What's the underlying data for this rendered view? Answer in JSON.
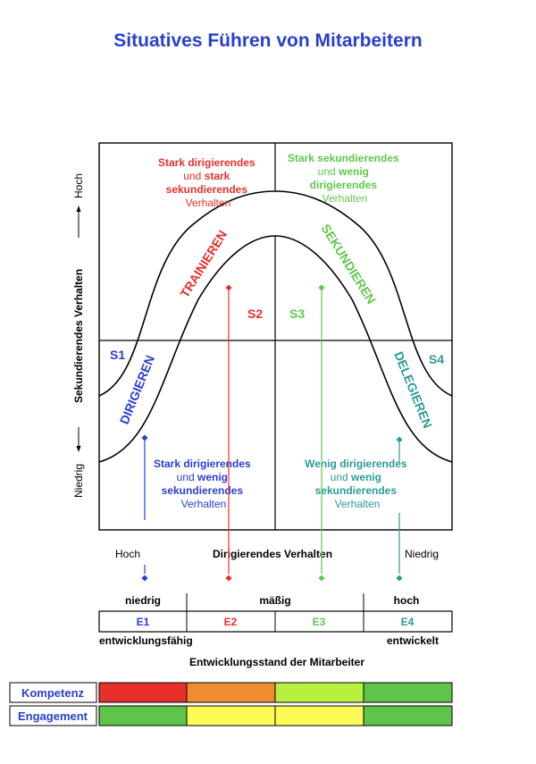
{
  "title": "Situatives Führen von Mitarbeitern",
  "y_axis": {
    "label": "Sekundierendes Verhalten",
    "high": "Hoch",
    "low": "Niedrig"
  },
  "x_axis": {
    "label": "Dirigierendes Verhalten",
    "high": "Hoch",
    "low": "Niedrig"
  },
  "quadrants": {
    "top_left": {
      "line1": "Stark dirigierendes",
      "line2a": "und ",
      "line2b": "stark",
      "line3": "sekundierendes",
      "line4": "Verhalten"
    },
    "top_right": {
      "line1": "Stark sekundierendes",
      "line2a": "und ",
      "line2b": "wenig",
      "line3": "dirigierendes",
      "line4": "Verhalten"
    },
    "bottom_left": {
      "line1": "Stark dirigierendes",
      "line2a": "und ",
      "line2b": "wenig",
      "line3": "sekundierendes",
      "line4": "Verhalten"
    },
    "bottom_right": {
      "line1": "Wenig dirigierendes",
      "line2a": "und ",
      "line2b": "wenig",
      "line3": "sekundierendes",
      "line4": "Verhalten"
    }
  },
  "styles": {
    "s1": "DIRIGIEREN",
    "s2": "TRAINIEREN",
    "s3": "SEKUNDIEREN",
    "s4": "DELEGIEREN"
  },
  "style_codes": {
    "s1": "S1",
    "s2": "S2",
    "s3": "S3",
    "s4": "S4"
  },
  "levels": {
    "low": "niedrig",
    "mid": "mäßig",
    "high": "hoch"
  },
  "stages": {
    "e1": "E1",
    "e2": "E2",
    "e3": "E3",
    "e4": "E4"
  },
  "stage_ends": {
    "left": "entwicklungsfähig",
    "right": "entwickelt"
  },
  "stage_axis_label": "Entwicklungsstand der Mitarbeiter",
  "rows": {
    "kompetenz": "Kompetenz",
    "engagement": "Engagement"
  },
  "colors": {
    "blue": "#2a3fcf",
    "red": "#e8302a",
    "green": "#5fc84a",
    "teal": "#2c9b96",
    "orange": "#f08c2f",
    "lime": "#b8f040",
    "yellow": "#fbfb55",
    "darkgreen": "#5ec44a"
  }
}
